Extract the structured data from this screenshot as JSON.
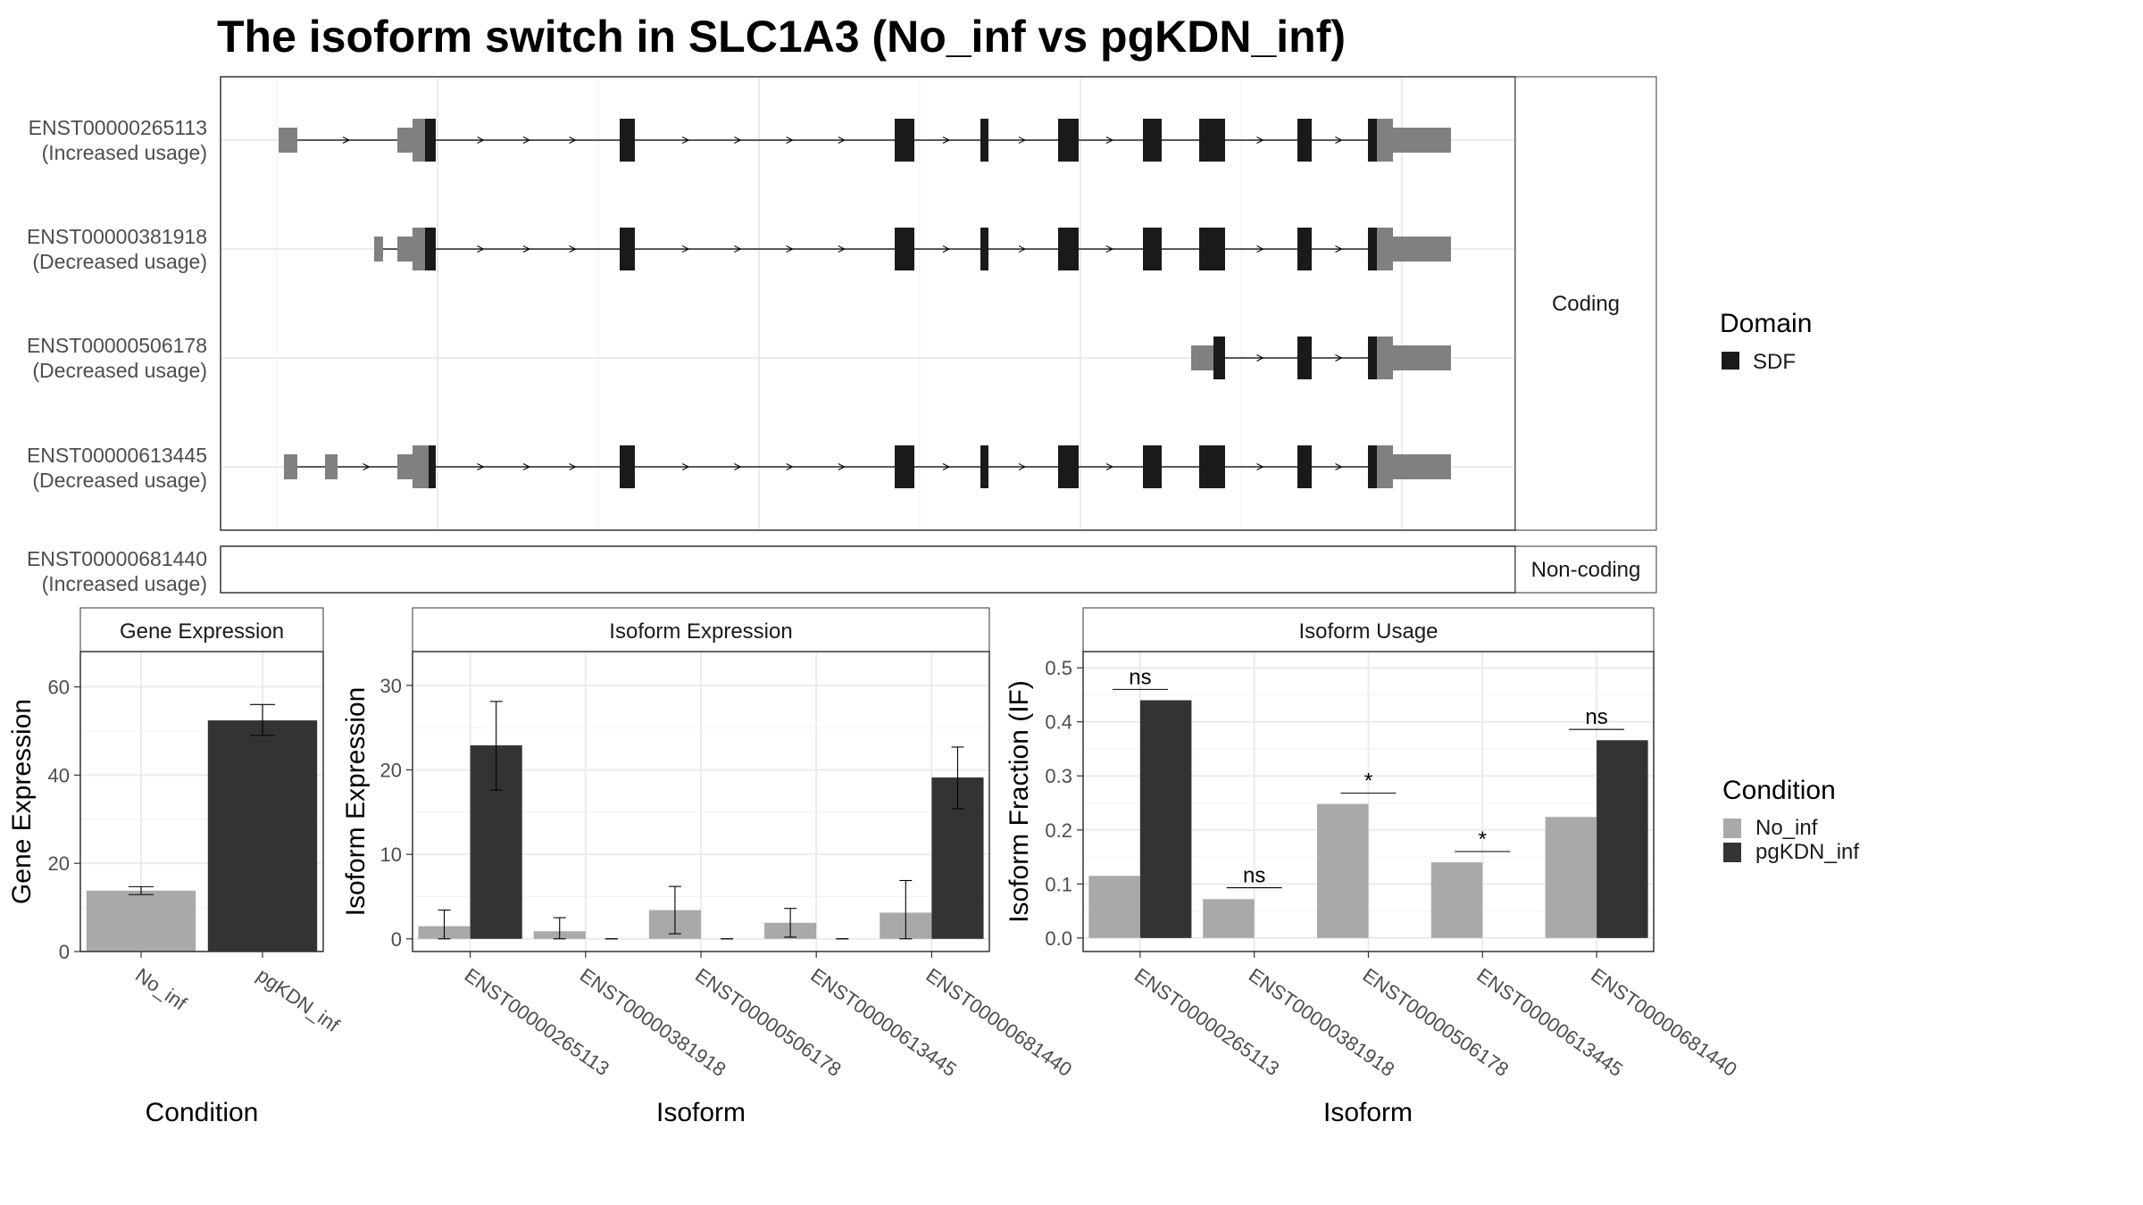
{
  "title": "The isoform switch in SLC1A3 (No_inf vs pgKDN_inf)",
  "colors": {
    "no_inf": "#a9a9a9",
    "pgkdn_inf": "#333333",
    "domain": "#1a1a1a",
    "utr": "#808080",
    "grid": "#ebebeb",
    "border": "#333333"
  },
  "structure": {
    "coding_label": "Coding",
    "noncoding_label": "Non-coding",
    "transcripts": [
      {
        "id": "ENST00000265113",
        "status": "(Increased usage)"
      },
      {
        "id": "ENST00000381918",
        "status": "(Decreased usage)"
      },
      {
        "id": "ENST00000506178",
        "status": "(Decreased usage)"
      },
      {
        "id": "ENST00000613445",
        "status": "(Decreased usage)"
      },
      {
        "id": "ENST00000681440",
        "status": "(Increased usage)"
      }
    ]
  },
  "legend_domain": {
    "title": "Domain",
    "items": [
      "SDF"
    ]
  },
  "legend_condition": {
    "title": "Condition",
    "items": [
      "No_inf",
      "pgKDN_inf"
    ]
  },
  "chart_data": [
    {
      "type": "bar",
      "panel": "Gene Expression",
      "xlabel": "Condition",
      "ylabel": "Gene Expression",
      "categories": [
        "No_inf",
        "pgKDN_inf"
      ],
      "values": [
        13.8,
        52.4
      ],
      "error_low": [
        12.9,
        49.0
      ],
      "error_high": [
        14.7,
        56.0
      ],
      "ylim": [
        0,
        68
      ],
      "yticks": [
        0,
        20,
        40,
        60
      ],
      "grid": true
    },
    {
      "type": "bar",
      "panel": "Isoform Expression",
      "xlabel": "Isoform",
      "ylabel": "Isoform Expression",
      "categories": [
        "ENST00000265113",
        "ENST00000381918",
        "ENST00000506178",
        "ENST00000613445",
        "ENST00000681440"
      ],
      "series": [
        {
          "name": "No_inf",
          "values": [
            1.5,
            0.9,
            3.4,
            1.9,
            3.1
          ],
          "error_low": [
            0,
            0,
            0.6,
            0.2,
            0
          ],
          "error_high": [
            3.4,
            2.5,
            6.2,
            3.6,
            6.9
          ]
        },
        {
          "name": "pgKDN_inf",
          "values": [
            22.9,
            0,
            0,
            0,
            19.1
          ],
          "error_low": [
            17.6,
            0,
            0,
            0,
            15.4
          ],
          "error_high": [
            28.1,
            0,
            0,
            0,
            22.7
          ]
        }
      ],
      "ylim": [
        -1.5,
        34
      ],
      "yticks": [
        0,
        10,
        20,
        30
      ],
      "grid": true
    },
    {
      "type": "bar",
      "panel": "Isoform Usage",
      "xlabel": "Isoform",
      "ylabel": "Isoform Fraction (IF)",
      "categories": [
        "ENST00000265113",
        "ENST00000381918",
        "ENST00000506178",
        "ENST00000613445",
        "ENST00000681440"
      ],
      "series": [
        {
          "name": "No_inf",
          "values": [
            0.115,
            0.072,
            0.248,
            0.14,
            0.224
          ]
        },
        {
          "name": "pgKDN_inf",
          "values": [
            0.44,
            0,
            0,
            0,
            0.366
          ]
        }
      ],
      "significance": [
        "ns",
        "ns",
        "*",
        "*",
        "ns"
      ],
      "significance_y": [
        0.46,
        0.093,
        0.268,
        0.16,
        0.386
      ],
      "ylim": [
        -0.025,
        0.53
      ],
      "yticks": [
        0.0,
        0.1,
        0.2,
        0.3,
        0.4,
        0.5
      ],
      "yticklabels": [
        "0.0",
        "0.1",
        "0.2",
        "0.3",
        "0.4",
        "0.5"
      ],
      "grid": true
    }
  ]
}
